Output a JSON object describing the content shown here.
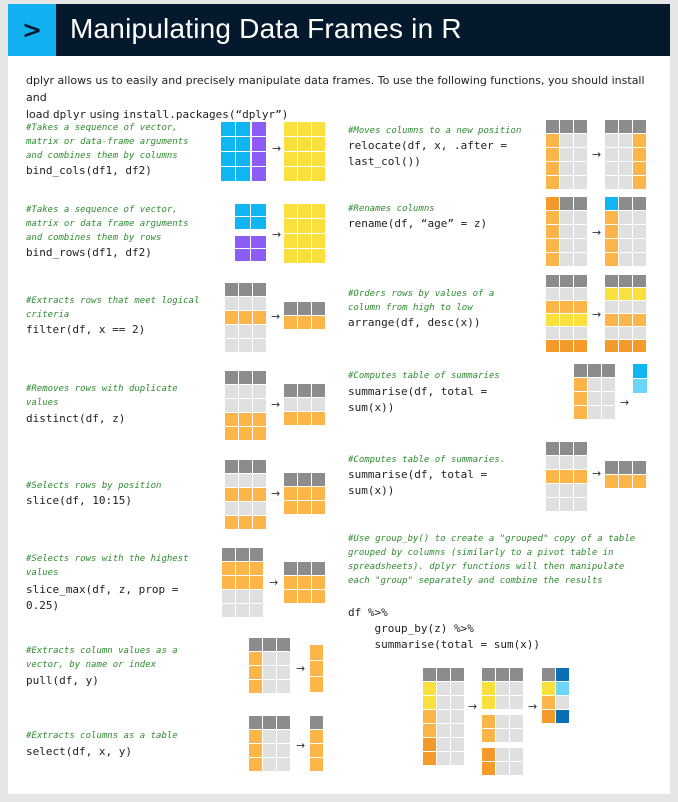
{
  "header": {
    "icon": ">",
    "title": "Manipulating Data Frames in R"
  },
  "intro": {
    "t1": "dplyr allows us to easily and precisely manipulate data frames. To use the following functions, you should install and",
    "t2a": "load ",
    "t2b": "dplyr",
    "t2c": " using ",
    "t2d": "install.packages(“dplyr”)"
  },
  "left": [
    {
      "comment": "#Takes a sequence of vector,\nmatrix or data-frame arguments\nand combines them by columns",
      "code": "bind_cols(df1, df2)"
    },
    {
      "comment": "#Takes a sequence of vector,\nmatrix or data frame arguments\nand combines them by rows",
      "code": "bind_rows(df1, df2)"
    },
    {
      "comment": "#Extracts rows that meet logical\ncriteria",
      "code": "filter(df, x == 2)"
    },
    {
      "comment": "#Removes rows with duplicate\nvalues",
      "code": "distinct(df, z)"
    },
    {
      "comment": "#Selects rows by position",
      "code": "slice(df, 10:15)"
    },
    {
      "comment": "#Selects rows with the highest\nvalues",
      "code": "slice_max(df, z, prop =\n0.25)"
    },
    {
      "comment": "#Extracts column values as a\nvector, by name or index",
      "code": "pull(df, y)"
    },
    {
      "comment": "#Extracts columns as a table",
      "code": "select(df, x, y)"
    }
  ],
  "right": [
    {
      "comment": "#Moves columns to a new position",
      "code": "relocate(df, x, .after =\nlast_col())"
    },
    {
      "comment": "#Renames columns",
      "code": "rename(df, “age” = z)"
    },
    {
      "comment": "#Orders rows by values of a\ncolumn from high to low",
      "code": "arrange(df, desc(x))"
    },
    {
      "comment": "#Computes table of summaries",
      "code": "summarise(df, total =\nsum(x))"
    },
    {
      "comment": "#Computes table of summaries.",
      "code": "summarise(df, total =\nsum(x))"
    },
    {
      "comment": "#Use group_by() to create a \"grouped\" copy of a table\ngrouped by columns (similarly to a pivot table in\nspreadsheets). dplyr functions will then manipulate\neach \"group\" separately and combine the results",
      "code": "df %>%\n    group_by(z) %>%\n    summarise(total = sum(x))"
    }
  ],
  "arrow_glyph": "→",
  "colors": {
    "header_bg": "#05192d",
    "icon_bg": "#12b0f0",
    "grey_header": "#8c8c8c",
    "light_grey": "#e0e0e0",
    "orange": "#fbb549",
    "yellow": "#f9e03c",
    "blue": "#0fb6f2",
    "purple": "#8b5cf6",
    "comment_green": "#2e8b2e"
  }
}
